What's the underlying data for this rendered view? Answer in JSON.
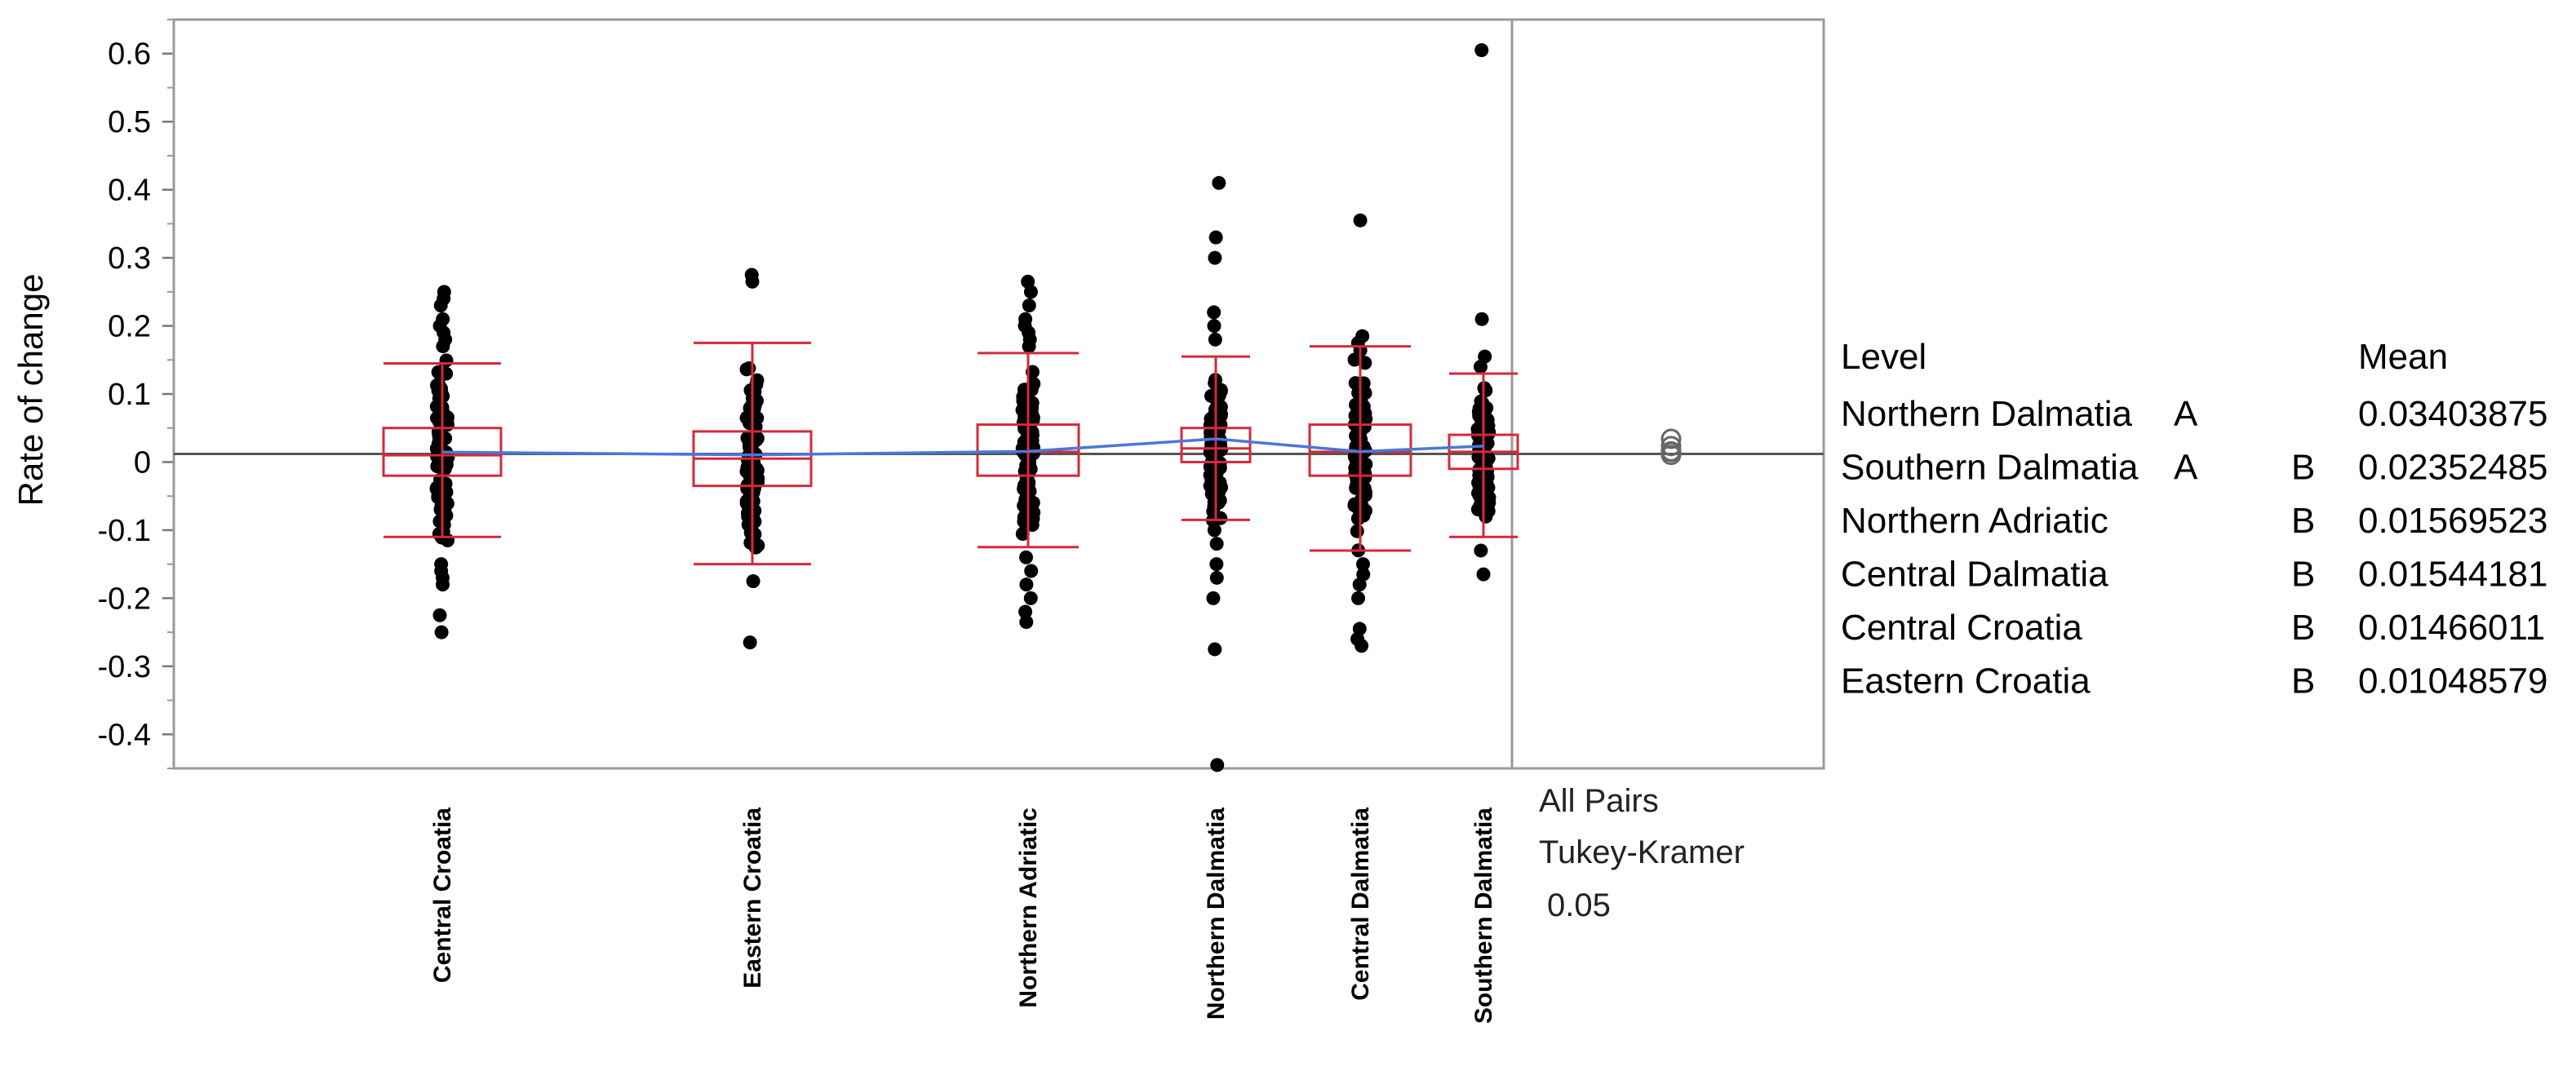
{
  "chart_data": {
    "type": "scatter",
    "subtype": "oneway-jitter-with-quantile-boxes",
    "title": "",
    "ylabel": "Rate of change",
    "xlabel": "",
    "ylim": [
      -0.45,
      0.65
    ],
    "yticks": [
      "0.6",
      "0.5",
      "0.4",
      "0.3",
      "0.2",
      "0.1",
      "0",
      "-0.1",
      "-0.2",
      "-0.3",
      "-0.4"
    ],
    "ytick_values": [
      0.6,
      0.5,
      0.4,
      0.3,
      0.2,
      0.1,
      0,
      -0.1,
      -0.2,
      -0.3,
      -0.4
    ],
    "grand_mean": 0.012,
    "categories": [
      "Central Croatia",
      "Eastern Croatia",
      "Northern Adriatic",
      "Northern Dalmatia",
      "Central Dalmatia",
      "Southern Dalmatia"
    ],
    "groups": [
      {
        "name": "Central Croatia",
        "mean": 0.01466011,
        "q1": -0.02,
        "median": 0.01,
        "q3": 0.05,
        "whisker_low": -0.11,
        "whisker_high": 0.145,
        "outliers": [
          0.25,
          0.24,
          0.23,
          0.21,
          0.2,
          0.19,
          0.18,
          0.17,
          -0.15,
          -0.16,
          -0.17,
          -0.18,
          -0.225,
          -0.25
        ],
        "dense_range": [
          -0.14,
          0.16
        ]
      },
      {
        "name": "Eastern Croatia",
        "mean": 0.01048579,
        "q1": -0.035,
        "median": 0.005,
        "q3": 0.045,
        "whisker_low": -0.15,
        "whisker_high": 0.175,
        "outliers": [
          0.275,
          0.265,
          -0.175,
          -0.265
        ],
        "dense_range": [
          -0.15,
          0.17
        ]
      },
      {
        "name": "Northern Adriatic",
        "mean": 0.01569523,
        "q1": -0.02,
        "median": 0.015,
        "q3": 0.055,
        "whisker_low": -0.125,
        "whisker_high": 0.16,
        "outliers": [
          0.265,
          0.25,
          0.23,
          0.21,
          0.2,
          0.19,
          0.18,
          0.17,
          -0.14,
          -0.16,
          -0.18,
          -0.2,
          -0.22,
          -0.235
        ],
        "dense_range": [
          -0.13,
          0.16
        ]
      },
      {
        "name": "Northern Dalmatia",
        "mean": 0.03403875,
        "q1": 0.0,
        "median": 0.02,
        "q3": 0.05,
        "whisker_low": -0.085,
        "whisker_high": 0.155,
        "outliers": [
          0.41,
          0.33,
          0.3,
          0.22,
          0.2,
          0.18,
          -0.1,
          -0.12,
          -0.15,
          -0.17,
          -0.2,
          -0.275,
          -0.445
        ],
        "dense_range": [
          -0.09,
          0.155
        ]
      },
      {
        "name": "Central Dalmatia",
        "mean": 0.01544181,
        "q1": -0.02,
        "median": 0.015,
        "q3": 0.055,
        "whisker_low": -0.13,
        "whisker_high": 0.17,
        "outliers": [
          0.355,
          0.185,
          0.175,
          -0.15,
          -0.165,
          -0.18,
          -0.2,
          -0.245,
          -0.26,
          -0.27
        ],
        "dense_range": [
          -0.14,
          0.17
        ]
      },
      {
        "name": "Southern Dalmatia",
        "mean": 0.02352485,
        "q1": -0.01,
        "median": 0.015,
        "q3": 0.04,
        "whisker_low": -0.11,
        "whisker_high": 0.13,
        "outliers": [
          0.605,
          0.21,
          0.155,
          0.14,
          -0.13,
          -0.165
        ],
        "dense_range": [
          -0.11,
          0.11
        ]
      }
    ]
  },
  "side_panel": {
    "line1": "All Pairs",
    "line2": "Tukey-Kramer",
    "line3": "0.05"
  },
  "comparison_table": {
    "header_level": "Level",
    "header_mean": "Mean",
    "rows": [
      {
        "level": "Northern Dalmatia",
        "letter_a": "A",
        "letter_b": "",
        "mean": "0.03403875"
      },
      {
        "level": "Southern Dalmatia",
        "letter_a": "A",
        "letter_b": "B",
        "mean": "0.02352485"
      },
      {
        "level": "Northern Adriatic",
        "letter_a": "",
        "letter_b": "B",
        "mean": "0.01569523"
      },
      {
        "level": "Central Dalmatia",
        "letter_a": "",
        "letter_b": "B",
        "mean": "0.01544181"
      },
      {
        "level": "Central Croatia",
        "letter_a": "",
        "letter_b": "B",
        "mean": "0.01466011"
      },
      {
        "level": "Eastern Croatia",
        "letter_a": "",
        "letter_b": "B",
        "mean": "0.01048579"
      }
    ]
  },
  "colors": {
    "box": "#d42a3a",
    "mean_line": "#4a78d8",
    "points": "#000000",
    "frame": "#9a9a9a",
    "grand_mean_line": "#555555"
  }
}
